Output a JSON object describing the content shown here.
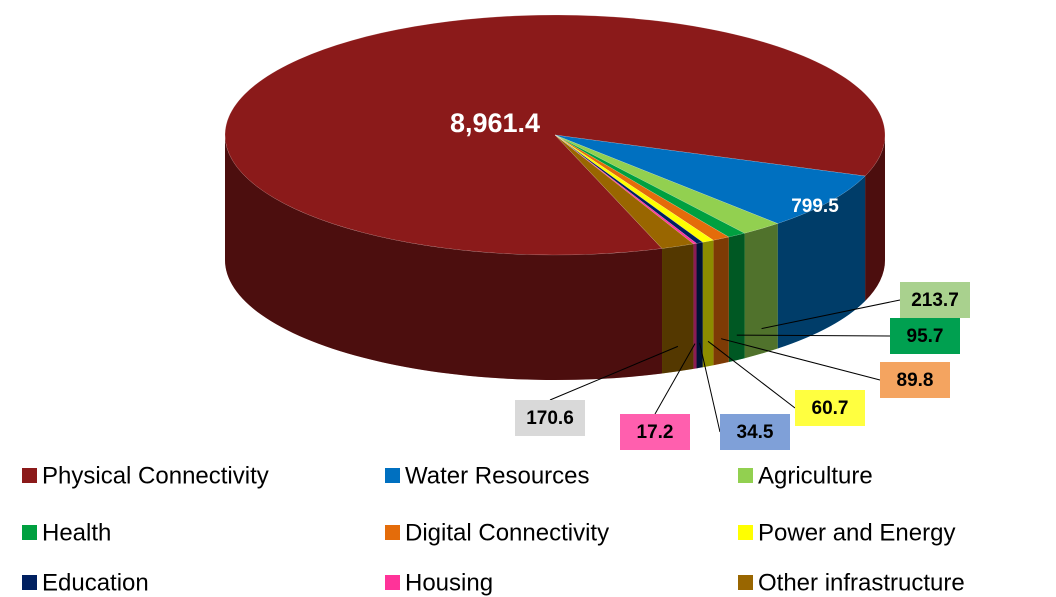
{
  "chart_data": {
    "type": "pie3d",
    "categories": [
      "Physical Connectivity",
      "Water Resources",
      "Agriculture",
      "Health",
      "Digital Connectivity",
      "Power and Energy",
      "Education",
      "Housing",
      "Other infrastructure"
    ],
    "values": [
      8961.4,
      799.5,
      213.7,
      95.7,
      89.8,
      60.7,
      34.5,
      17.2,
      170.6
    ],
    "value_labels": [
      "8,961.4",
      "799.5",
      "213.7",
      "95.7",
      "89.8",
      "60.7",
      "34.5",
      "17.2",
      "170.6"
    ],
    "colors": [
      "#8b1a1a",
      "#0070c0",
      "#92d050",
      "#00a040",
      "#e46c0a",
      "#ffff00",
      "#002060",
      "#ff3399",
      "#996600"
    ],
    "label_colors": [
      null,
      null,
      "#a9d18e",
      "#00a050",
      "#f4a460",
      "#ffff40",
      "#7fa0d8",
      "#ff5fae",
      "#d9d9d9"
    ],
    "legend": "bottom"
  }
}
